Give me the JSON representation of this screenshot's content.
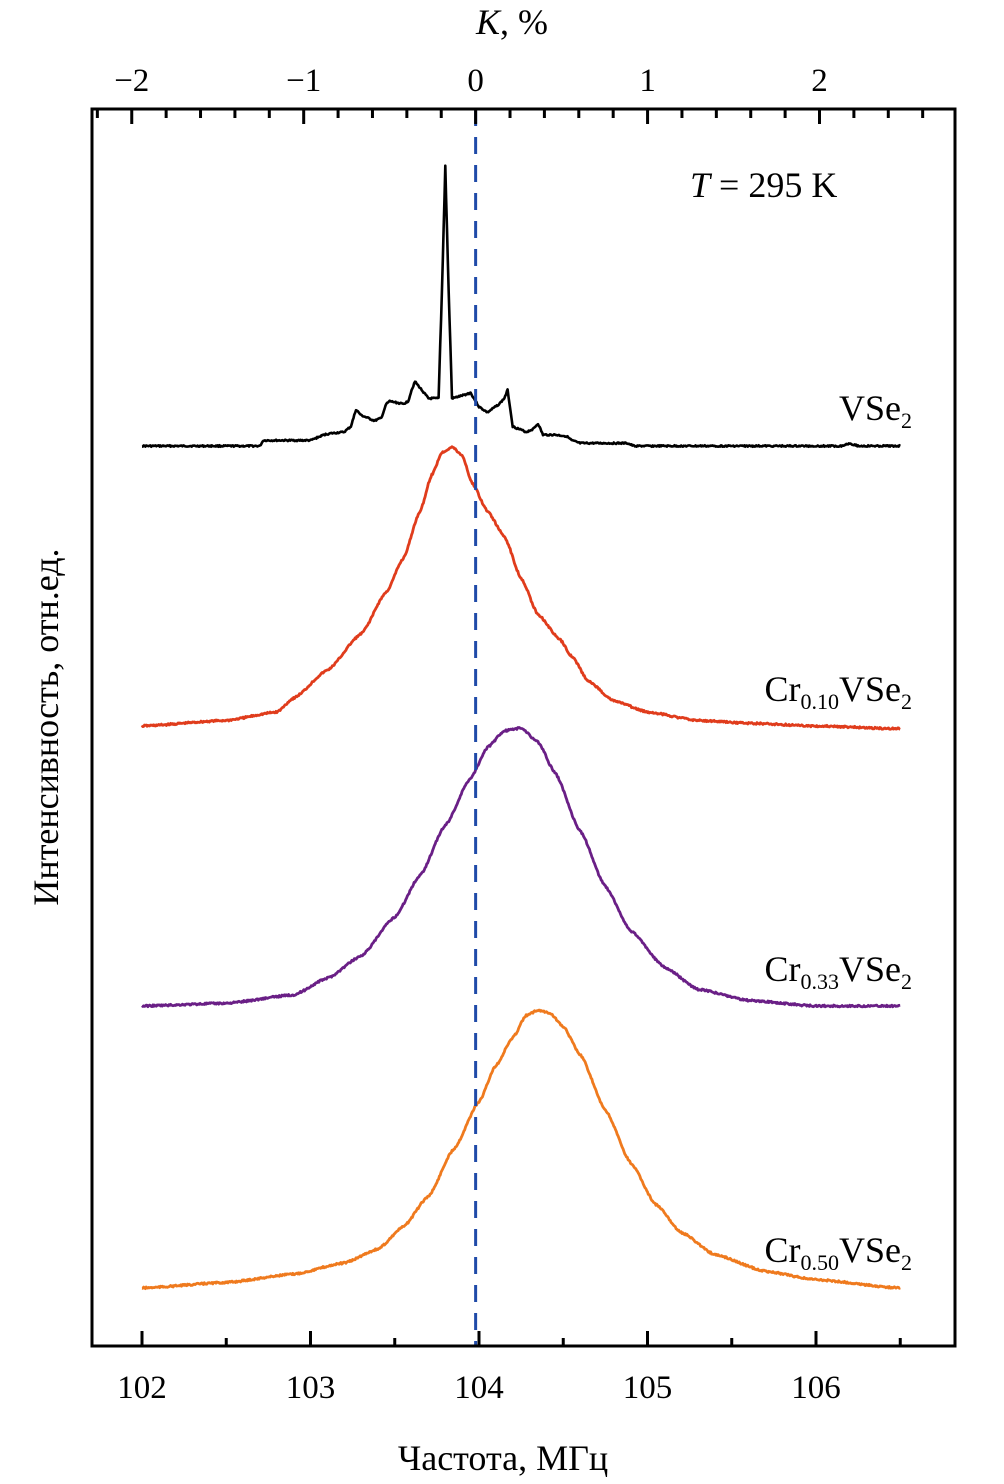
{
  "chart_data": {
    "type": "line",
    "title": "",
    "xlabel": "Частота, МГц",
    "ylabel": "Интенсивность, отн.ед.",
    "x2label": "K, %",
    "xlim": [
      101.7,
      106.65
    ],
    "x_ticks": [
      102,
      103,
      104,
      105,
      106
    ],
    "x_tick_labels": [
      "102",
      "103",
      "104",
      "105",
      "106"
    ],
    "x_minor_step": 0.5,
    "x2_ticks": [
      -2,
      -1,
      0,
      1,
      2
    ],
    "x2_tick_labels": [
      "−2",
      "−1",
      "0",
      "1",
      "2"
    ],
    "x2_minor_step": 0.2,
    "x2_zero_at_frequency": 103.98,
    "x2_percent_per_MHz": 0.98,
    "grid": false,
    "legend": "none (labels placed beside each curve, right side)",
    "annotation": {
      "italic": "T",
      "text": " = 295 K"
    },
    "reference_line": {
      "x": 103.98,
      "style": "dashed",
      "color": "#1f4aa8",
      "meaning": "K = 0"
    },
    "series": [
      {
        "name": "VSe2",
        "label_main": "VSe",
        "label_sub": "2",
        "color": "#000000",
        "offset": 3,
        "x": [
          102.0,
          102.7,
          102.72,
          102.75,
          103.0,
          103.08,
          103.12,
          103.2,
          103.24,
          103.27,
          103.3,
          103.38,
          103.42,
          103.45,
          103.47,
          103.55,
          103.58,
          103.6,
          103.62,
          103.7,
          103.76,
          103.78,
          103.8,
          103.82,
          103.84,
          103.9,
          103.95,
          103.98,
          104.0,
          104.05,
          104.12,
          104.15,
          104.17,
          104.2,
          104.28,
          104.32,
          104.35,
          104.38,
          104.45,
          104.52,
          104.55,
          104.6,
          104.88,
          104.92,
          105.5,
          106.15,
          106.2,
          106.25,
          106.5
        ],
        "values": [
          0.0,
          0.0,
          0.02,
          0.02,
          0.02,
          0.04,
          0.045,
          0.05,
          0.07,
          0.13,
          0.11,
          0.09,
          0.1,
          0.15,
          0.16,
          0.15,
          0.16,
          0.2,
          0.23,
          0.17,
          0.17,
          0.55,
          1.0,
          0.55,
          0.17,
          0.18,
          0.19,
          0.16,
          0.14,
          0.12,
          0.15,
          0.17,
          0.2,
          0.07,
          0.05,
          0.06,
          0.08,
          0.04,
          0.04,
          0.035,
          0.02,
          0.01,
          0.01,
          0.0,
          0.0,
          0.0,
          0.01,
          0.0,
          0.0
        ]
      },
      {
        "name": "Cr0.10VSe2",
        "label_main": "Cr",
        "label_sub_mid": "0.10",
        "label_tail": "VSe",
        "label_sub": "2",
        "color": "#e03c1c",
        "offset": 2,
        "x": [
          102.0,
          102.5,
          102.8,
          102.9,
          103.1,
          103.3,
          103.45,
          103.55,
          103.65,
          103.72,
          103.78,
          103.84,
          103.9,
          103.96,
          104.05,
          104.15,
          104.25,
          104.35,
          104.48,
          104.55,
          104.65,
          104.8,
          105.0,
          105.3,
          105.6,
          106.0,
          106.5
        ],
        "values": [
          0.0,
          0.02,
          0.05,
          0.1,
          0.2,
          0.33,
          0.48,
          0.6,
          0.77,
          0.9,
          0.98,
          1.0,
          0.97,
          0.87,
          0.77,
          0.68,
          0.53,
          0.4,
          0.31,
          0.25,
          0.16,
          0.09,
          0.05,
          0.02,
          0.01,
          0.0,
          -0.01
        ]
      },
      {
        "name": "Cr0.33VSe2",
        "label_main": "Cr",
        "label_sub_mid": "0.33",
        "label_tail": "VSe",
        "label_sub": "2",
        "color": "#6a1f86",
        "offset": 1,
        "x": [
          102.0,
          102.5,
          102.9,
          103.1,
          103.3,
          103.5,
          103.65,
          103.8,
          103.95,
          104.05,
          104.15,
          104.25,
          104.35,
          104.45,
          104.6,
          104.75,
          104.9,
          105.1,
          105.3,
          105.6,
          106.0,
          106.5
        ],
        "values": [
          0.0,
          0.01,
          0.04,
          0.1,
          0.18,
          0.32,
          0.47,
          0.65,
          0.82,
          0.93,
          0.99,
          1.0,
          0.95,
          0.84,
          0.63,
          0.43,
          0.27,
          0.14,
          0.06,
          0.02,
          0.0,
          0.0
        ]
      },
      {
        "name": "Cr0.50VSe2",
        "label_main": "Cr",
        "label_sub_mid": "0.50",
        "label_tail": "VSe",
        "label_sub": "2",
        "color": "#ef7a1e",
        "offset": 0,
        "x": [
          102.0,
          102.5,
          102.9,
          103.2,
          103.4,
          103.55,
          103.7,
          103.85,
          104.0,
          104.1,
          104.2,
          104.28,
          104.35,
          104.42,
          104.5,
          104.6,
          104.75,
          104.9,
          105.05,
          105.2,
          105.4,
          105.7,
          106.0,
          106.5
        ],
        "values": [
          0.0,
          0.02,
          0.05,
          0.09,
          0.14,
          0.22,
          0.33,
          0.5,
          0.67,
          0.8,
          0.9,
          0.98,
          1.0,
          0.99,
          0.94,
          0.84,
          0.64,
          0.45,
          0.3,
          0.2,
          0.12,
          0.06,
          0.03,
          0.0
        ]
      }
    ]
  }
}
